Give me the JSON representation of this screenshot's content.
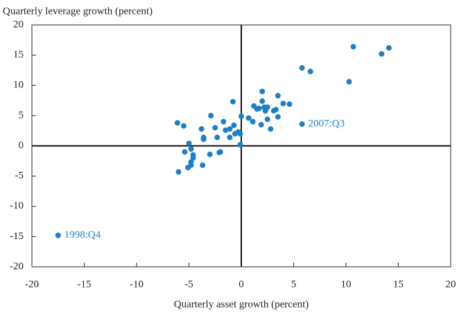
{
  "chart_data": {
    "type": "scatter",
    "ylabel": "Quarterly leverage growth (percent)",
    "xlabel": "Quarterly asset growth (percent)",
    "color": "#1f7fc0",
    "xlim": [
      -20,
      20
    ],
    "ylim": [
      -20,
      20
    ],
    "xticks": [
      -20,
      -15,
      -10,
      -5,
      0,
      5,
      10,
      15,
      20
    ],
    "yticks": [
      -20,
      -15,
      -10,
      -5,
      0,
      5,
      10,
      15,
      20
    ],
    "x": [
      10.7,
      14.1,
      13.4,
      5.8,
      6.6,
      10.3,
      2.0,
      -0.8,
      3.5,
      4.0,
      4.6,
      2.0,
      1.2,
      1.5,
      1.7,
      2.2,
      2.5,
      2.3,
      3.1,
      3.3,
      -2.9,
      0.0,
      0.7,
      2.5,
      3.5,
      1.1,
      1.9,
      -6.1,
      -5.5,
      -1.7,
      5.8,
      -2.5,
      -3.8,
      -0.7,
      -1.1,
      -1.5,
      -0.3,
      -0.1,
      -0.6,
      2.8,
      -2.3,
      -3.6,
      -3.6,
      -1.1,
      -0.1,
      -5.0,
      -4.8,
      -5.4,
      -4.6,
      -4.6,
      -2.1,
      -2.0,
      -3.0,
      -4.8,
      -4.8,
      -5.1,
      -3.7,
      -6.0,
      -17.5
    ],
    "y": [
      16.4,
      16.2,
      15.2,
      12.9,
      12.3,
      10.6,
      9.0,
      7.3,
      8.3,
      7.0,
      6.9,
      7.4,
      6.6,
      6.1,
      6.2,
      6.4,
      6.4,
      5.8,
      5.8,
      6.0,
      5.0,
      4.9,
      4.6,
      4.4,
      4.8,
      4.0,
      3.5,
      3.8,
      3.3,
      4.0,
      3.6,
      3.0,
      2.8,
      3.4,
      2.8,
      2.6,
      2.3,
      2.0,
      2.0,
      2.8,
      1.4,
      1.4,
      1.1,
      1.4,
      0.2,
      0.4,
      -0.5,
      -1.0,
      -1.5,
      -2.0,
      -1.1,
      -1.0,
      -1.4,
      -2.7,
      -3.2,
      -3.6,
      -3.2,
      -4.3,
      -14.8
    ],
    "annotations": [
      {
        "text": "2007:Q3",
        "x": 5.8,
        "y": 3.6
      },
      {
        "text": "1998:Q4",
        "x": -17.5,
        "y": -14.8
      }
    ]
  }
}
